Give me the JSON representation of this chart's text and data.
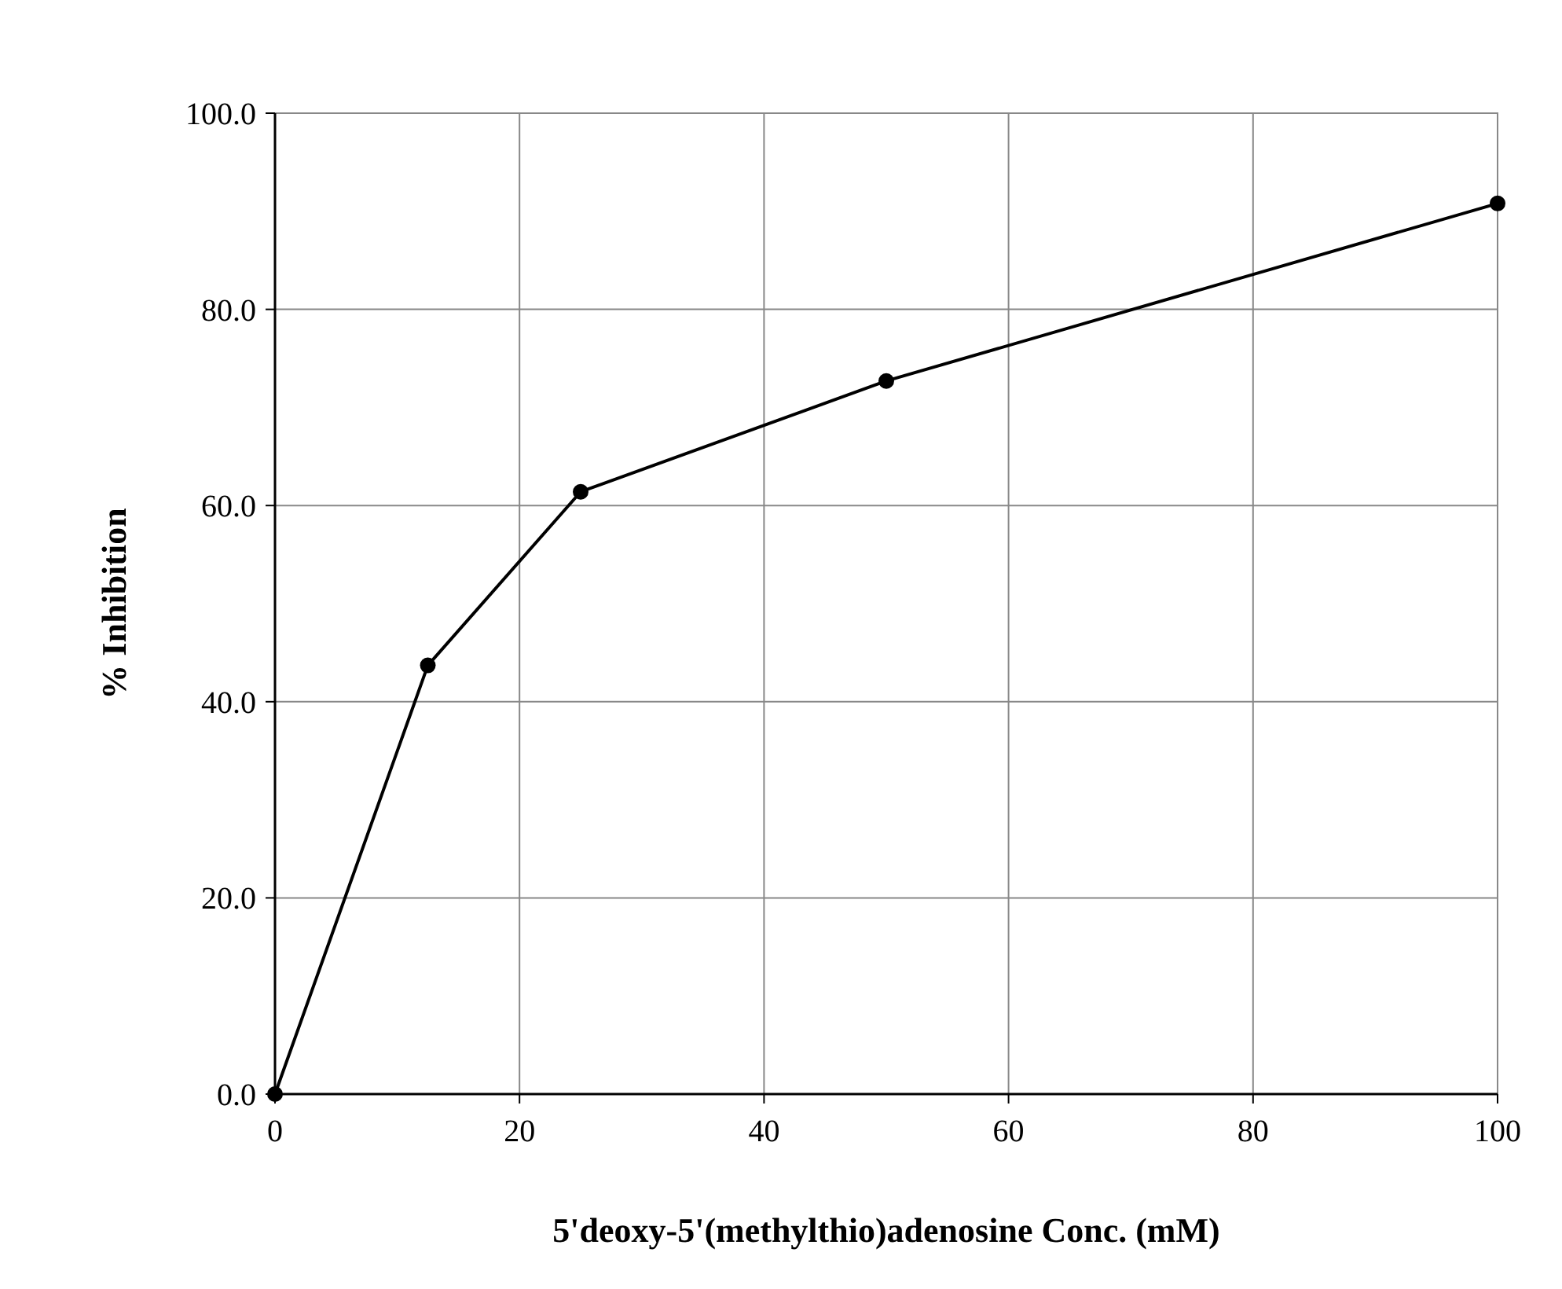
{
  "chart_data": {
    "type": "line",
    "xlabel": "5'deoxy-5'(methylthio)adenosine Conc. (mM)",
    "ylabel": "% Inhibition",
    "x": [
      0,
      12.5,
      25,
      50,
      100
    ],
    "series": [
      {
        "color": "#000000",
        "values": [
          0,
          43.7,
          61.4,
          72.7,
          90.8
        ]
      }
    ],
    "xlim": [
      0,
      100
    ],
    "xticks": [
      0,
      20,
      40,
      60,
      80,
      100
    ],
    "ylim": [
      0,
      100
    ],
    "yticks": [
      {
        "value": 0,
        "label": "0.0"
      },
      {
        "value": 20,
        "label": "20.0"
      },
      {
        "value": 40,
        "label": "40.0"
      },
      {
        "value": 60,
        "label": "60.0"
      },
      {
        "value": 80,
        "label": "80.0"
      },
      {
        "value": 100,
        "label": "100.0"
      }
    ],
    "grid": true,
    "marker": "circle",
    "line_style": "solid"
  }
}
